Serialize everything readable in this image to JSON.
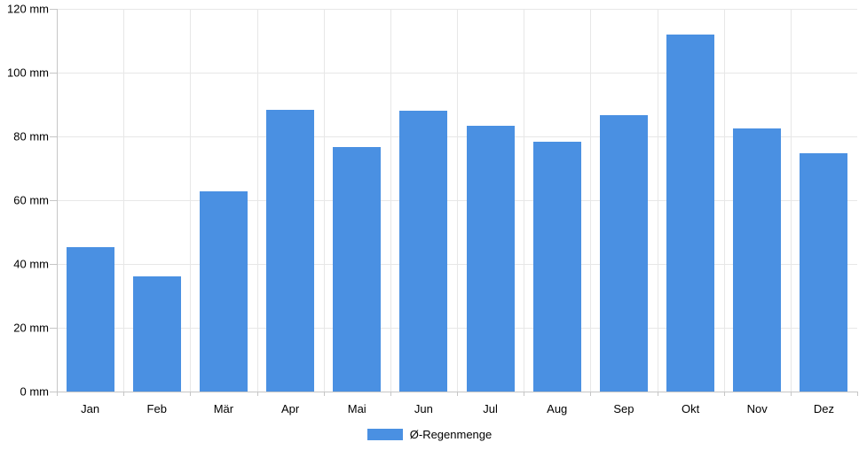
{
  "chart_data": {
    "type": "bar",
    "title": "",
    "categories": [
      "Jan",
      "Feb",
      "Mär",
      "Apr",
      "Mai",
      "Jun",
      "Jul",
      "Aug",
      "Sep",
      "Okt",
      "Nov",
      "Dez"
    ],
    "series": [
      {
        "name": "Ø-Regenmenge",
        "values": [
          45.3,
          36.1,
          62.9,
          88.3,
          76.7,
          88.1,
          83.3,
          78.3,
          86.8,
          111.9,
          82.6,
          74.6
        ],
        "color": "#4a90e2"
      }
    ],
    "unit": "mm",
    "xlabel": "",
    "ylabel": "",
    "ylim": [
      0,
      120
    ],
    "ytick_step": 20,
    "ytick_labels": [
      "0 mm",
      "20 mm",
      "40 mm",
      "60 mm",
      "80 mm",
      "100 mm",
      "120 mm"
    ],
    "grid": true,
    "legend_position": "bottom"
  },
  "colors": {
    "bar": "#4a90e2",
    "grid": "#e7e7e7",
    "axis": "#c6c6c6",
    "text": "#000000",
    "background": "#ffffff"
  }
}
